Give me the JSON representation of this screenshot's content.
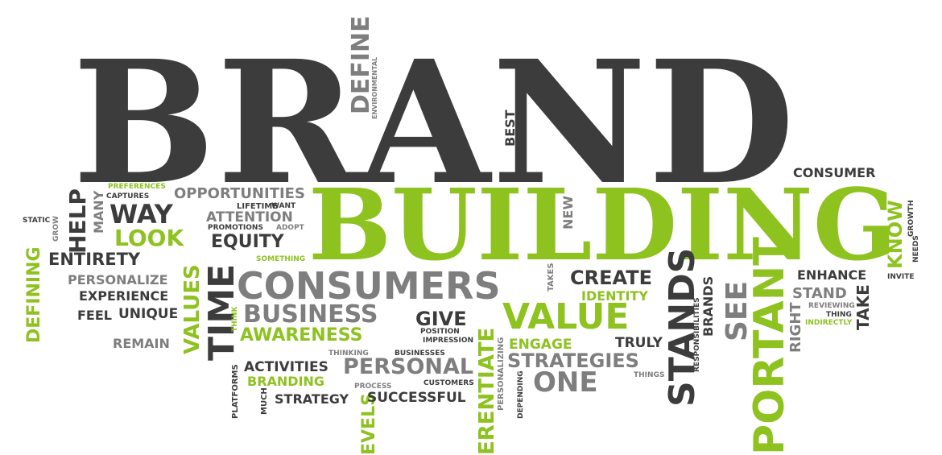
{
  "colors": {
    "dark": "#3c3c3c",
    "grey": "#7e7e7e",
    "lime": "#8dc21f"
  },
  "words": {
    "brand": "BRAND",
    "building": "BUILDING",
    "consumers": "CONSUMERS",
    "business": "BUSINESS",
    "awareness": "AWARENESS",
    "value": "VALUE",
    "personal": "PERSONAL",
    "strategies": "STRATEGIES",
    "one": "ONE",
    "create": "CREATE",
    "identity": "IDENTITY",
    "engage": "ENGAGE",
    "truly": "TRULY",
    "give": "GIVE",
    "position": "POSITION",
    "impression": "IMPRESSION",
    "way": "WAY",
    "look": "LOOK",
    "equity": "EQUITY",
    "entirety": "ENTIRETY",
    "opportunities": "OPPORTUNITIES",
    "lifetime": "LIFETIME",
    "want": "WANT",
    "attention": "ATTENTION",
    "promotions": "PROMOTIONS",
    "adopt": "ADOPT",
    "something": "SOMETHING",
    "preferences": "PREFERENCES",
    "captures": "CAPTURES",
    "personalize": "PERSONALIZE",
    "experience": "EXPERIENCE",
    "feel": "FEEL",
    "unique": "UNIQUE",
    "remain": "REMAIN",
    "static": "STATIC",
    "grow": "GROW",
    "thinking": "THINKING",
    "businesses": "BUSINESSES",
    "activities": "ACTIVITIES",
    "branding": "BRANDING",
    "customers": "CUSTOMERS",
    "process": "PROCESS",
    "strategy": "STRATEGY",
    "successful": "SUCCESSFUL",
    "consumer": "CONSUMER",
    "enhance": "ENHANCE",
    "invite": "INVITE",
    "stand": "STAND",
    "reviewing": "REVIEWING",
    "thing": "THING",
    "indirectly": "INDIRECTLY",
    "things": "THINGS",
    "define": "DEFINE",
    "environmental": "ENVIRONMENTAL",
    "best": "BEST",
    "help": "HELP",
    "many": "MANY",
    "defining": "DEFINING",
    "values": "VALUES",
    "time": "TIME",
    "think": "THINK",
    "platforms": "PLATFORMS",
    "much": "MUCH",
    "levels": "EVELS",
    "differentiate": "ERENTIATE",
    "personalizing": "PERSONALIZING",
    "depending": "DEPENDING",
    "new": "NEW",
    "takes": "TAKES",
    "stands": "STANDS",
    "responsibilities": "RESPONSIBILITIES",
    "brands": "BRANDS",
    "see": "SEE",
    "important": "PORTANT",
    "right": "RIGHT",
    "take": "TAKE",
    "know": "KNOW",
    "growth": "GROWTH",
    "needs": "NEEDS"
  }
}
